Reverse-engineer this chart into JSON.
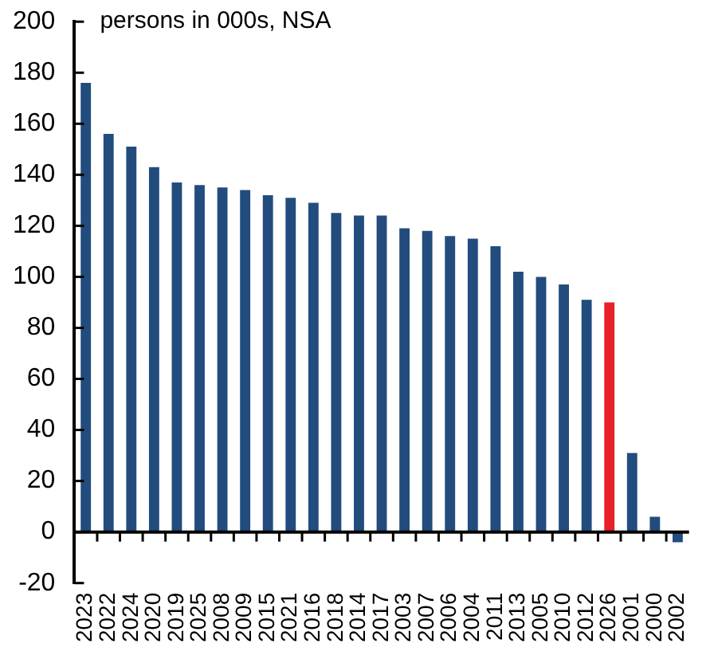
{
  "chart_data": {
    "type": "bar",
    "subtitle": "persons in 000s, NSA",
    "categories": [
      "2023",
      "2022",
      "2024",
      "2020",
      "2019",
      "2025",
      "2008",
      "2009",
      "2015",
      "2021",
      "2016",
      "2018",
      "2014",
      "2017",
      "2003",
      "2007",
      "2006",
      "2004",
      "2011",
      "2013",
      "2005",
      "2010",
      "2012",
      "2026",
      "2001",
      "2000",
      "2002"
    ],
    "values": [
      176,
      156,
      151,
      143,
      137,
      136,
      135,
      134,
      132,
      131,
      129,
      125,
      124,
      124,
      119,
      118,
      116,
      115,
      112,
      102,
      100,
      97,
      91,
      90,
      31,
      6,
      -4
    ],
    "colors": [
      "#224c7e",
      "#224c7e",
      "#224c7e",
      "#224c7e",
      "#224c7e",
      "#224c7e",
      "#224c7e",
      "#224c7e",
      "#224c7e",
      "#224c7e",
      "#224c7e",
      "#224c7e",
      "#224c7e",
      "#224c7e",
      "#224c7e",
      "#224c7e",
      "#224c7e",
      "#224c7e",
      "#224c7e",
      "#224c7e",
      "#224c7e",
      "#224c7e",
      "#224c7e",
      "#e8202a",
      "#224c7e",
      "#224c7e",
      "#224c7e"
    ],
    "ylim": [
      -20,
      200
    ],
    "yticks": [
      -20,
      0,
      20,
      40,
      60,
      80,
      100,
      120,
      140,
      160,
      180,
      200
    ],
    "legend": false
  }
}
